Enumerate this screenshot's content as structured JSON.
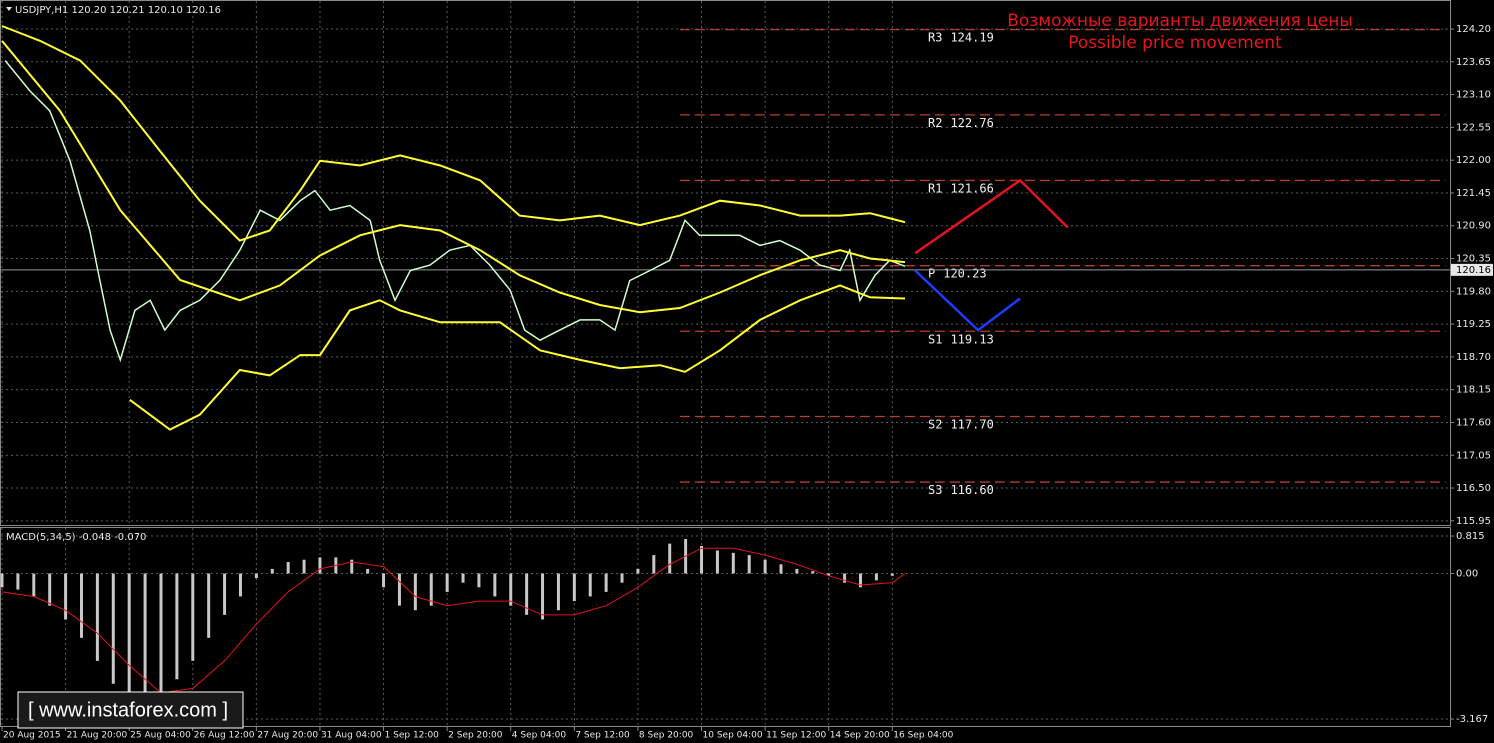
{
  "header": "USDJPY,H1  120.20 120.21 120.10 120.16",
  "watermark": "[  www.instaforex.com ]",
  "chart_data": [
    {
      "type": "line",
      "title": "Возможные варианты движения цены",
      "subtitle": "Possible price movement",
      "xlim": [
        0,
        22.77
      ],
      "xticks": [
        {
          "value": 0,
          "label": "20 Aug 2015"
        },
        {
          "value": 1,
          "label": "21 Aug 20:00"
        },
        {
          "value": 2,
          "label": "25 Aug 04:00"
        },
        {
          "value": 3,
          "label": "26 Aug 12:00"
        },
        {
          "value": 4,
          "label": "27 Aug 20:00"
        },
        {
          "value": 5,
          "label": "31 Aug 04:00"
        },
        {
          "value": 6,
          "label": "1 Sep 12:00"
        },
        {
          "value": 7,
          "label": "2 Sep 20:00"
        },
        {
          "value": 8,
          "label": "4 Sep 04:00"
        },
        {
          "value": 9,
          "label": "7 Sep 12:00"
        },
        {
          "value": 10,
          "label": "8 Sep 20:00"
        },
        {
          "value": 11,
          "label": "10 Sep 04:00"
        },
        {
          "value": 12,
          "label": "11 Sep 12:00"
        },
        {
          "value": 13,
          "label": "14 Sep 20:00"
        },
        {
          "value": 14,
          "label": "16 Sep 04:00"
        }
      ],
      "ylim": [
        115.88,
        124.67
      ],
      "yticks": [
        {
          "value": 124.2,
          "label": "124.20"
        },
        123.65,
        {
          "value": 123.1,
          "label": "123.10"
        },
        122.55,
        {
          "value": 122,
          "label": "122.00"
        },
        121.45,
        {
          "value": 120.9,
          "label": "120.90"
        },
        120.35,
        {
          "value": 119.8,
          "label": "119.80"
        },
        119.25,
        {
          "value": 118.7,
          "label": "118.70"
        },
        118.15,
        {
          "value": 117.6,
          "label": "117.60"
        },
        117.05,
        {
          "value": 116.5,
          "label": "116.50"
        },
        115.95
      ],
      "grid": true,
      "last_price": 120.16,
      "series": [
        {
          "color": "#ccffcc",
          "width": 1.5,
          "x": [
            0.05,
            0.44,
            0.75,
            1.07,
            1.38,
            1.54,
            1.7,
            1.86,
            2.09,
            2.33,
            2.56,
            2.8,
            3.11,
            3.43,
            3.74,
            4.06,
            4.37,
            4.69,
            4.92,
            5.16,
            5.47,
            5.79,
            5.94,
            6.18,
            6.42,
            6.73,
            7.04,
            7.36,
            7.67,
            7.99,
            8.22,
            8.46,
            8.77,
            9.09,
            9.4,
            9.64,
            9.87,
            10.19,
            10.5,
            10.74,
            10.97,
            11.29,
            11.6,
            11.92,
            12.23,
            12.55,
            12.86,
            13.18,
            13.33,
            13.49,
            13.73,
            13.96,
            14.2
          ],
          "values": [
            123.67,
            123.16,
            122.83,
            121.99,
            120.82,
            119.98,
            119.15,
            118.65,
            119.48,
            119.65,
            119.15,
            119.48,
            119.65,
            119.99,
            120.49,
            121.16,
            120.99,
            121.32,
            121.49,
            121.16,
            121.24,
            120.99,
            120.32,
            119.65,
            120.15,
            120.24,
            120.49,
            120.57,
            120.24,
            119.82,
            119.15,
            118.98,
            119.15,
            119.32,
            119.32,
            119.15,
            119.98,
            120.15,
            120.32,
            120.99,
            120.74,
            120.74,
            120.74,
            120.57,
            120.65,
            120.49,
            120.24,
            120.15,
            120.49,
            119.65,
            120.07,
            120.32,
            120.22
          ]
        },
        {
          "color": "#ffff33",
          "width": 2,
          "x": [
            0,
            0.6,
            1.23,
            1.86,
            2.48,
            3.11,
            3.74,
            4.21,
            4.69,
            5.0,
            5.63,
            6.26,
            6.89,
            7.52,
            8.14,
            8.77,
            9.4,
            10.03,
            10.66,
            11.29,
            11.92,
            12.55,
            13.18,
            13.65,
            14.2
          ],
          "values": [
            124.25,
            124.0,
            123.67,
            123.0,
            122.16,
            121.32,
            120.65,
            120.82,
            121.49,
            121.99,
            121.91,
            122.08,
            121.91,
            121.66,
            121.07,
            120.99,
            121.07,
            120.91,
            121.07,
            121.32,
            121.24,
            121.07,
            121.07,
            121.11,
            120.96
          ]
        },
        {
          "color": "#ffff33",
          "width": 2,
          "x": [
            0,
            0.91,
            1.86,
            2.8,
            3.74,
            4.37,
            5.0,
            5.63,
            6.26,
            6.89,
            7.52,
            8.14,
            8.77,
            9.4,
            10.03,
            10.66,
            11.29,
            11.92,
            12.55,
            13.18,
            13.65,
            14.2
          ],
          "values": [
            124.0,
            122.83,
            121.16,
            119.99,
            119.65,
            119.9,
            120.4,
            120.74,
            120.91,
            120.82,
            120.49,
            120.07,
            119.78,
            119.57,
            119.45,
            119.52,
            119.78,
            120.07,
            120.32,
            120.49,
            120.35,
            120.29
          ]
        },
        {
          "color": "#ffff33",
          "width": 2,
          "x": [
            2.01,
            2.64,
            3.11,
            3.74,
            4.21,
            4.69,
            5.0,
            5.47,
            5.94,
            6.26,
            6.89,
            7.83,
            8.46,
            9.09,
            9.72,
            10.35,
            10.74,
            11.29,
            11.92,
            12.55,
            13.18,
            13.65,
            14.2
          ],
          "values": [
            117.98,
            117.48,
            117.73,
            118.48,
            118.39,
            118.73,
            118.73,
            119.48,
            119.65,
            119.48,
            119.28,
            119.28,
            118.81,
            118.65,
            118.51,
            118.56,
            118.45,
            118.81,
            119.32,
            119.65,
            119.9,
            119.7,
            119.68
          ]
        },
        {
          "color": "#e0141e",
          "width": 2.5,
          "x": [
            14.36,
            16.01,
            16.76
          ],
          "values": [
            120.44,
            121.66,
            120.87
          ]
        },
        {
          "color": "#1e3cff",
          "width": 2.5,
          "x": [
            14.36,
            15.35,
            16.01
          ],
          "values": [
            120.15,
            119.15,
            119.68
          ]
        }
      ],
      "levels": {
        "names": [
          "R3",
          "R2",
          "R1",
          "P",
          "S1",
          "S2",
          "S3"
        ],
        "values": [
          124.19,
          122.76,
          121.66,
          120.23,
          119.13,
          117.7,
          116.6
        ],
        "value_labels": [
          "124.19",
          "122.76",
          "121.66",
          "120.23",
          "119.13",
          "117.70",
          "116.60"
        ],
        "color": "#b4402a",
        "xlim": [
          10.66,
          22.7
        ]
      }
    },
    {
      "type": "macd",
      "title": "MACD(5,34,5) -0.048 -0.070",
      "xlim": [
        0,
        22.77
      ],
      "ylim": [
        -3.34,
        0.99
      ],
      "yticks": [
        0.815,
        {
          "value": 0,
          "label": "0.00"
        },
        -3.167
      ],
      "histogram": {
        "color": "#c8c8c8",
        "x": [
          0,
          0.25,
          0.5,
          0.75,
          1,
          1.25,
          1.5,
          1.75,
          2,
          2.25,
          2.5,
          2.75,
          3,
          3.25,
          3.5,
          3.75,
          4,
          4.25,
          4.5,
          4.75,
          5,
          5.25,
          5.5,
          5.75,
          6,
          6.25,
          6.5,
          6.75,
          7,
          7.25,
          7.5,
          7.75,
          8,
          8.25,
          8.5,
          8.75,
          9,
          9.25,
          9.5,
          9.75,
          10,
          10.25,
          10.5,
          10.75,
          11,
          11.25,
          11.5,
          11.75,
          12,
          12.25,
          12.5,
          12.75,
          13,
          13.25,
          13.5,
          13.75,
          14
        ],
        "values": [
          -0.3,
          -0.35,
          -0.5,
          -0.7,
          -1.0,
          -1.4,
          -1.9,
          -2.4,
          -2.8,
          -2.9,
          -2.7,
          -2.3,
          -1.9,
          -1.4,
          -0.9,
          -0.5,
          -0.1,
          0.1,
          0.25,
          0.3,
          0.35,
          0.35,
          0.3,
          0.1,
          -0.3,
          -0.7,
          -0.8,
          -0.7,
          -0.4,
          -0.2,
          -0.3,
          -0.5,
          -0.7,
          -0.9,
          -1.0,
          -0.8,
          -0.6,
          -0.5,
          -0.4,
          -0.2,
          0.1,
          0.4,
          0.65,
          0.75,
          0.6,
          0.5,
          0.45,
          0.4,
          0.3,
          0.2,
          0.1,
          0.05,
          -0.05,
          -0.2,
          -0.3,
          -0.15,
          -0.05
        ]
      },
      "signal": {
        "color": "#e0141e",
        "x": [
          0,
          0.5,
          1,
          1.5,
          2,
          2.5,
          3,
          3.5,
          4,
          4.5,
          5,
          5.5,
          6,
          6.5,
          7,
          7.5,
          8,
          8.5,
          9,
          9.5,
          10,
          10.5,
          11,
          11.5,
          12,
          12.5,
          13,
          13.5,
          14,
          14.2
        ],
        "values": [
          -0.4,
          -0.5,
          -0.8,
          -1.3,
          -2.0,
          -2.6,
          -2.5,
          -1.9,
          -1.1,
          -0.4,
          0.1,
          0.25,
          0.15,
          -0.5,
          -0.7,
          -0.6,
          -0.6,
          -0.9,
          -0.9,
          -0.7,
          -0.3,
          0.2,
          0.55,
          0.55,
          0.4,
          0.2,
          -0.05,
          -0.25,
          -0.2,
          0.0
        ]
      }
    }
  ]
}
